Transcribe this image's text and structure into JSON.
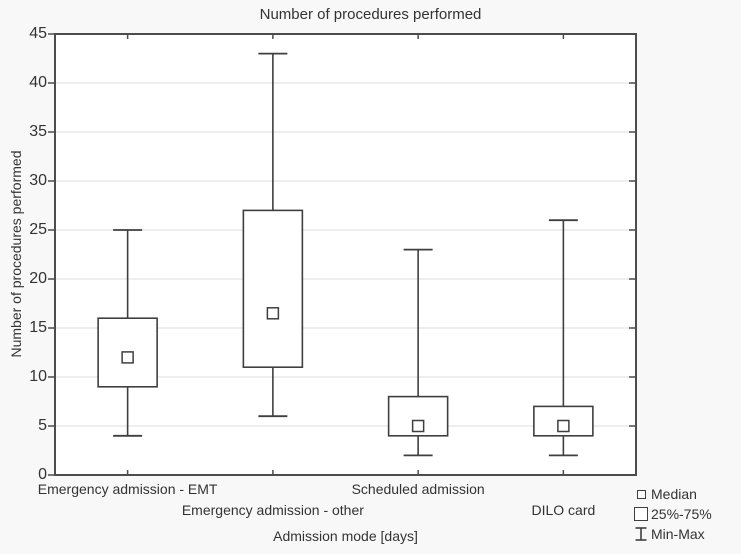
{
  "title": "Number of procedures performed",
  "axes": {
    "y_label": "Number of procedures performed",
    "x_label": "Admission mode [days]"
  },
  "chart_data": {
    "type": "boxplot",
    "title": "Number of procedures performed",
    "xlabel": "Admission mode [days]",
    "ylabel": "Number of procedures performed",
    "ylim": [
      0,
      45
    ],
    "ytick_step": 5,
    "grid": true,
    "legend_position": "bottom-right",
    "categories": [
      "Emergency admission - EMT",
      "Emergency admission - other",
      "Scheduled admission",
      "DILO card"
    ],
    "series": [
      {
        "name": "Emergency admission - EMT",
        "min": 4,
        "q1": 9,
        "median": 12,
        "q3": 16,
        "max": 25
      },
      {
        "name": "Emergency admission - other",
        "min": 6,
        "q1": 11,
        "median": 16.5,
        "q3": 27,
        "max": 43
      },
      {
        "name": "Scheduled admission",
        "min": 2,
        "q1": 4,
        "median": 5,
        "q3": 8,
        "max": 23
      },
      {
        "name": "DILO card",
        "min": 2,
        "q1": 4,
        "median": 5,
        "q3": 7,
        "max": 26
      }
    ]
  },
  "legend": {
    "items": [
      {
        "symbol": "median-square",
        "label": "Median"
      },
      {
        "symbol": "iqr-box",
        "label": "25%-75%"
      },
      {
        "symbol": "min-max-whisker",
        "label": "Min-Max"
      }
    ]
  },
  "colors": {
    "background": "#f8f8f8",
    "plot_background": "#ffffff",
    "frame": "#4c4c4c",
    "gridline": "#e4e4e4",
    "box_stroke": "#3f3f3f",
    "text": "#333333"
  }
}
